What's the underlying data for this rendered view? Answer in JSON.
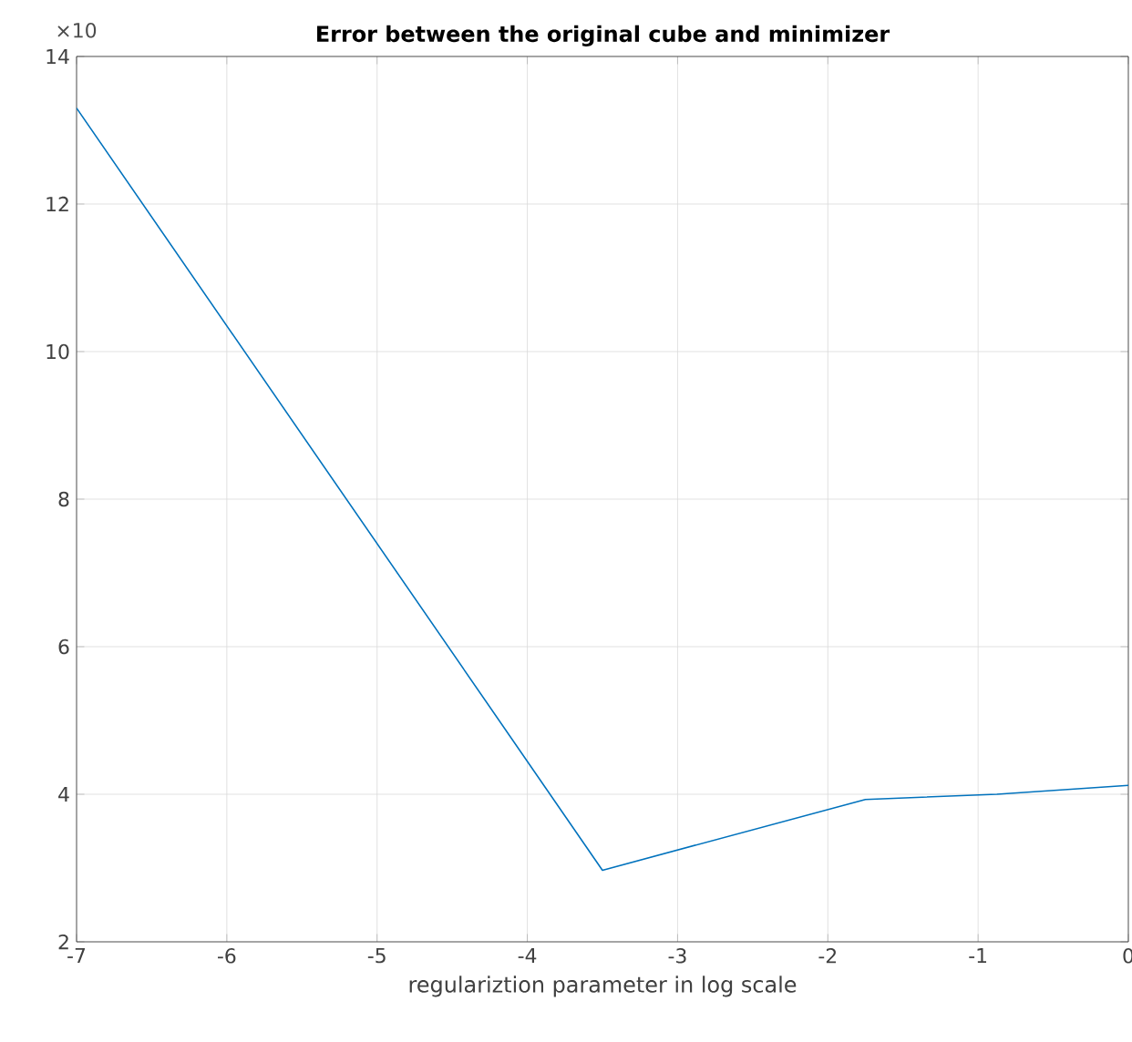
{
  "chart_data": {
    "type": "line",
    "title": "**Error between the original cube and minimizer**",
    "xlabel": "regulariztion parameter in log scale",
    "annotations": [
      "×10"
    ],
    "x": [
      -7,
      -3.5,
      -1.75,
      -0.875,
      0
    ],
    "series": [
      {
        "color": "#0072bd",
        "values": [
          13.3,
          2.97,
          3.93,
          4.0,
          4.12
        ]
      }
    ],
    "xlim": [
      -7,
      0
    ],
    "xticks": [
      -7,
      -6,
      -5,
      -4,
      -3,
      -2,
      -1,
      0
    ],
    "ylim": [
      2,
      14
    ],
    "yticks": [
      2,
      4,
      6,
      8,
      10,
      12,
      14
    ],
    "grid": true,
    "marker": "none",
    "line_style": "solid"
  }
}
